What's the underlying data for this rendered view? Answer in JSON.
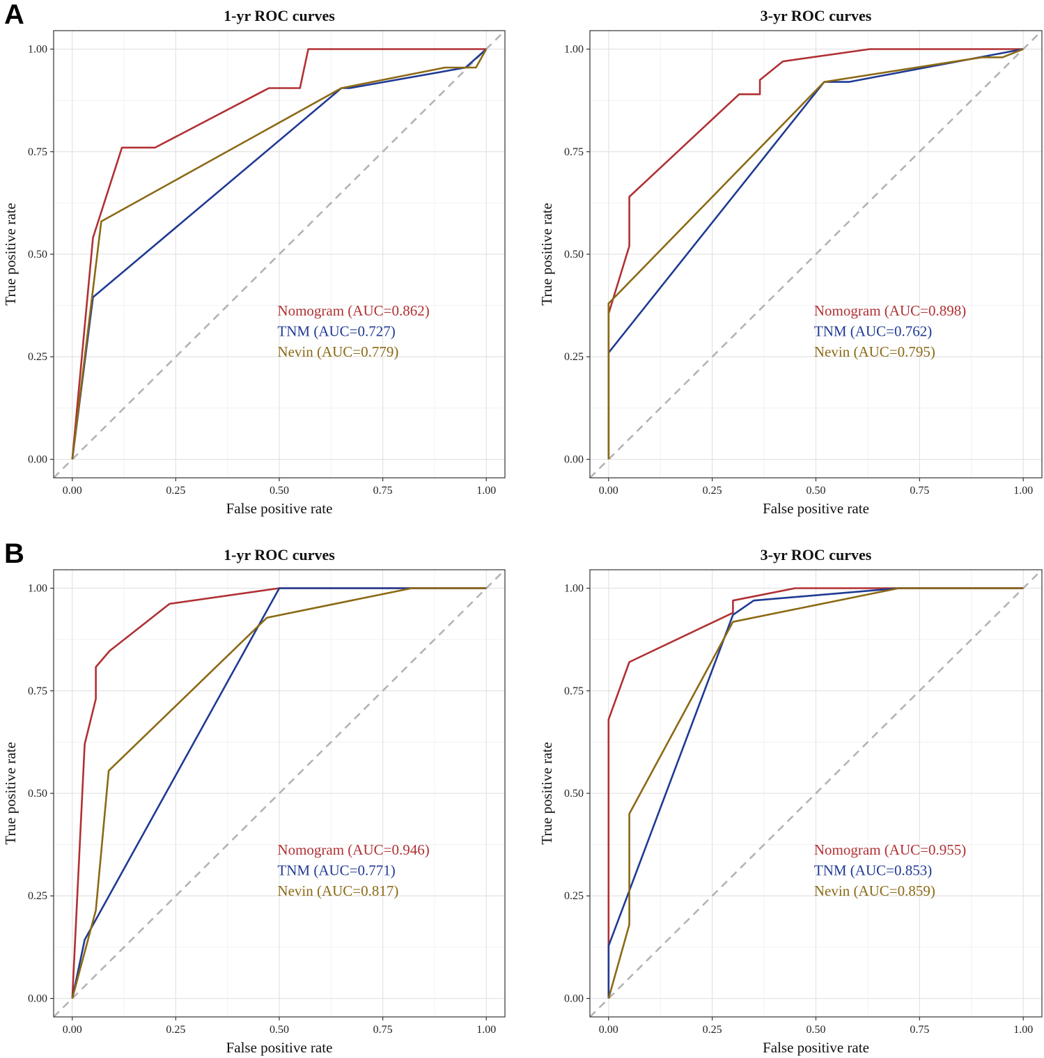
{
  "figure": {
    "panel_letters": [
      "A",
      "B"
    ]
  },
  "colors": {
    "Nomogram": "#b03033",
    "TNM": "#1f3a93",
    "Nevin": "#8b6914",
    "diagonal": "#b3b3b3",
    "grid_major": "#e3e3e3",
    "grid_minor": "#f1f1f1",
    "frame": "#333333"
  },
  "chart_data": [
    {
      "type": "line",
      "panel": "A",
      "title": "1-yr ROC curves",
      "xlabel": "False positive rate",
      "ylabel": "True positive rate",
      "xlim": [
        0,
        1
      ],
      "ylim": [
        0,
        1
      ],
      "x_ticks": [
        "0.00",
        "0.25",
        "0.50",
        "0.75",
        "1.00"
      ],
      "y_ticks": [
        "0.00",
        "0.25",
        "0.50",
        "0.75",
        "1.00"
      ],
      "grid": true,
      "reference_line": "diagonal",
      "legend_position": "inside-right",
      "series": [
        {
          "name": "Nomogram",
          "legend": "Nomogram (AUC=0.862)",
          "auc": 0.862,
          "points": [
            [
              0,
              0
            ],
            [
              0.05,
              0.54
            ],
            [
              0.05,
              0.54
            ],
            [
              0.12,
              0.76
            ],
            [
              0.2,
              0.76
            ],
            [
              0.475,
              0.905
            ],
            [
              0.55,
              0.905
            ],
            [
              0.57,
              1.0
            ],
            [
              1.0,
              1.0
            ]
          ]
        },
        {
          "name": "TNM",
          "legend": "TNM (AUC=0.727)",
          "auc": 0.727,
          "points": [
            [
              0,
              0
            ],
            [
              0.05,
              0.395
            ],
            [
              0.65,
              0.905
            ],
            [
              0.67,
              0.905
            ],
            [
              0.95,
              0.955
            ],
            [
              1.0,
              1.0
            ]
          ]
        },
        {
          "name": "Nevin",
          "legend": "Nevin (AUC=0.779)",
          "auc": 0.779,
          "points": [
            [
              0,
              0
            ],
            [
              0.07,
              0.58
            ],
            [
              0.65,
              0.905
            ],
            [
              0.9,
              0.955
            ],
            [
              0.975,
              0.955
            ],
            [
              1.0,
              1.0
            ]
          ]
        }
      ]
    },
    {
      "type": "line",
      "panel": "A",
      "title": "3-yr ROC curves",
      "xlabel": "False positive rate",
      "ylabel": "True positive rate",
      "xlim": [
        0,
        1
      ],
      "ylim": [
        0,
        1
      ],
      "x_ticks": [
        "0.00",
        "0.25",
        "0.50",
        "0.75",
        "1.00"
      ],
      "y_ticks": [
        "0.00",
        "0.25",
        "0.50",
        "0.75",
        "1.00"
      ],
      "grid": true,
      "reference_line": "diagonal",
      "legend_position": "inside-right",
      "series": [
        {
          "name": "Nomogram",
          "legend": "Nomogram (AUC=0.898)",
          "auc": 0.898,
          "points": [
            [
              0,
              0
            ],
            [
              0,
              0.355
            ],
            [
              0.05,
              0.52
            ],
            [
              0.05,
              0.64
            ],
            [
              0.315,
              0.89
            ],
            [
              0.365,
              0.89
            ],
            [
              0.365,
              0.925
            ],
            [
              0.42,
              0.97
            ],
            [
              0.63,
              1.0
            ],
            [
              1.0,
              1.0
            ]
          ]
        },
        {
          "name": "TNM",
          "legend": "TNM (AUC=0.762)",
          "auc": 0.762,
          "points": [
            [
              0,
              0
            ],
            [
              0,
              0.26
            ],
            [
              0.52,
              0.92
            ],
            [
              0.58,
              0.92
            ],
            [
              1.0,
              1.0
            ]
          ]
        },
        {
          "name": "Nevin",
          "legend": "Nevin (AUC=0.795)",
          "auc": 0.795,
          "points": [
            [
              0,
              0
            ],
            [
              0,
              0.38
            ],
            [
              0.52,
              0.92
            ],
            [
              0.9,
              0.98
            ],
            [
              0.95,
              0.98
            ],
            [
              1.0,
              1.0
            ]
          ]
        }
      ]
    },
    {
      "type": "line",
      "panel": "B",
      "title": "1-yr ROC curves",
      "xlabel": "False positive rate",
      "ylabel": "True positive rate",
      "xlim": [
        0,
        1
      ],
      "ylim": [
        0,
        1
      ],
      "x_ticks": [
        "0.00",
        "0.25",
        "0.50",
        "0.75",
        "1.00"
      ],
      "y_ticks": [
        "0.00",
        "0.25",
        "0.50",
        "0.75",
        "1.00"
      ],
      "grid": true,
      "reference_line": "diagonal",
      "legend_position": "inside-right",
      "series": [
        {
          "name": "Nomogram",
          "legend": "Nomogram (AUC=0.946)",
          "auc": 0.946,
          "points": [
            [
              0,
              0
            ],
            [
              0.03,
              0.62
            ],
            [
              0.057,
              0.73
            ],
            [
              0.057,
              0.808
            ],
            [
              0.09,
              0.847
            ],
            [
              0.235,
              0.962
            ],
            [
              0.5,
              1.0
            ],
            [
              1.0,
              1.0
            ]
          ]
        },
        {
          "name": "TNM",
          "legend": "TNM (AUC=0.771)",
          "auc": 0.771,
          "points": [
            [
              0,
              0
            ],
            [
              0.03,
              0.143
            ],
            [
              0.5,
              1.0
            ],
            [
              1.0,
              1.0
            ]
          ]
        },
        {
          "name": "Nevin",
          "legend": "Nevin (AUC=0.817)",
          "auc": 0.817,
          "points": [
            [
              0,
              0
            ],
            [
              0.057,
              0.215
            ],
            [
              0.088,
              0.555
            ],
            [
              0.47,
              0.928
            ],
            [
              0.82,
              1.0
            ],
            [
              1.0,
              1.0
            ]
          ]
        }
      ]
    },
    {
      "type": "line",
      "panel": "B",
      "title": "3-yr ROC curves",
      "xlabel": "False positive rate",
      "ylabel": "True positive rate",
      "xlim": [
        0,
        1
      ],
      "ylim": [
        0,
        1
      ],
      "x_ticks": [
        "0.00",
        "0.25",
        "0.50",
        "0.75",
        "1.00"
      ],
      "y_ticks": [
        "0.00",
        "0.25",
        "0.50",
        "0.75",
        "1.00"
      ],
      "grid": true,
      "reference_line": "diagonal",
      "legend_position": "inside-right",
      "series": [
        {
          "name": "Nomogram",
          "legend": "Nomogram (AUC=0.955)",
          "auc": 0.955,
          "points": [
            [
              0,
              0
            ],
            [
              0,
              0.68
            ],
            [
              0.05,
              0.82
            ],
            [
              0.3,
              0.94
            ],
            [
              0.3,
              0.97
            ],
            [
              0.35,
              0.98
            ],
            [
              0.45,
              1.0
            ],
            [
              1.0,
              1.0
            ]
          ]
        },
        {
          "name": "TNM",
          "legend": "TNM (AUC=0.853)",
          "auc": 0.853,
          "points": [
            [
              0,
              0
            ],
            [
              0,
              0.128
            ],
            [
              0.3,
              0.935
            ],
            [
              0.35,
              0.97
            ],
            [
              0.7,
              1.0
            ],
            [
              1.0,
              1.0
            ]
          ]
        },
        {
          "name": "Nevin",
          "legend": "Nevin (AUC=0.859)",
          "auc": 0.859,
          "points": [
            [
              0,
              0
            ],
            [
              0.05,
              0.18
            ],
            [
              0.05,
              0.45
            ],
            [
              0.3,
              0.918
            ],
            [
              0.7,
              1.0
            ],
            [
              1.0,
              1.0
            ]
          ]
        }
      ]
    }
  ]
}
